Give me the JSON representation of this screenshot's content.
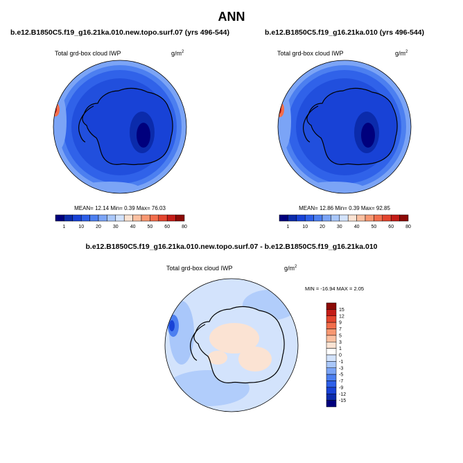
{
  "title": "ANN",
  "panels": [
    {
      "case": "b.e12.B1850C5.f19_g16.21ka.010.new.topo.surf.07 (yrs 496-544)",
      "variable": "Total grd-box cloud IWP",
      "units_base": "g/m",
      "units_exp": "2",
      "stats": "MEAN=  12.14  Min=   0.39  Max=  76.03",
      "colorbar": {
        "ticks": [
          "1",
          "10",
          "20",
          "30",
          "40",
          "50",
          "60",
          "80"
        ],
        "colors": [
          "#00007d",
          "#0b2bab",
          "#1842d6",
          "#2d5fe8",
          "#4c7ff0",
          "#7ba4f6",
          "#a9c7fa",
          "#d3e3fc",
          "#fbe3d3",
          "#fbc0a1",
          "#f89872",
          "#f26e4c",
          "#e3452e",
          "#c41c17",
          "#8c0a06"
        ]
      }
    },
    {
      "case": "b.e12.B1850C5.f19_g16.21ka.010 (yrs 496-544)",
      "variable": "Total grd-box cloud IWP",
      "units_base": "g/m",
      "units_exp": "2",
      "stats": "MEAN=  12.86  Min=   0.39  Max=  92.85",
      "colorbar": {
        "ticks": [
          "1",
          "10",
          "20",
          "30",
          "40",
          "50",
          "60",
          "80"
        ],
        "colors": [
          "#00007d",
          "#0b2bab",
          "#1842d6",
          "#2d5fe8",
          "#4c7ff0",
          "#7ba4f6",
          "#a9c7fa",
          "#d3e3fc",
          "#fbe3d3",
          "#fbc0a1",
          "#f89872",
          "#f26e4c",
          "#e3452e",
          "#c41c17",
          "#8c0a06"
        ]
      }
    }
  ],
  "difference": {
    "case": "b.e12.B1850C5.f19_g16.21ka.010.new.topo.surf.07 - b.e12.B1850C5.f19_g16.21ka.010",
    "variable": "Total grd-box cloud IWP",
    "units_base": "g/m",
    "units_exp": "2",
    "stats": "MIN = -16.94 MAX =   2.05",
    "colorbar": {
      "ticks": [
        "15",
        "12",
        "9",
        "7",
        "5",
        "3",
        "1",
        "0",
        "-1",
        "-3",
        "-5",
        "-7",
        "-9",
        "-12",
        "-15"
      ],
      "colors": [
        "#8c0a06",
        "#c41c17",
        "#e3452e",
        "#f26e4c",
        "#f89872",
        "#fbc0a1",
        "#fbe3d3",
        "#ffffff",
        "#d3e3fc",
        "#a9c7fa",
        "#7ba4f6",
        "#4c7ff0",
        "#2d5fe8",
        "#1842d6",
        "#0b2bab",
        "#00007d"
      ]
    }
  }
}
